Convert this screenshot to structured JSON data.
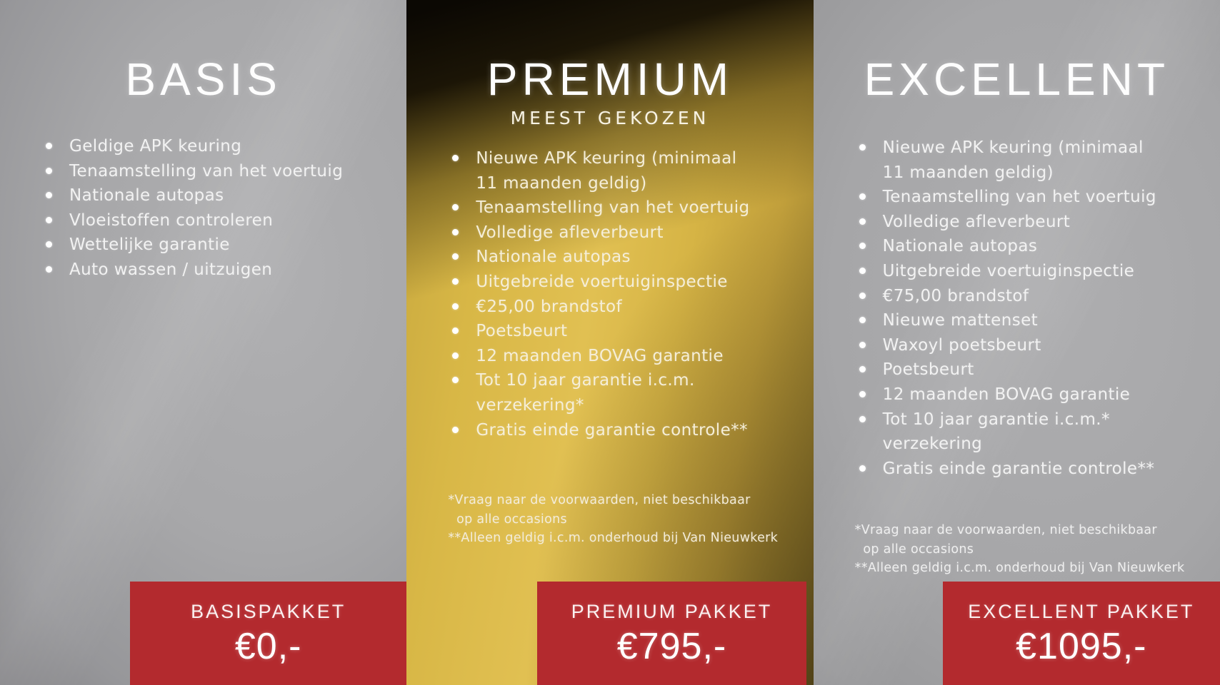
{
  "poster": {
    "columns": [
      {
        "id": "basis",
        "title": "BASIS",
        "subtitle": "",
        "features": [
          "Geldige APK keuring",
          "Tenaamstelling van het voertuig",
          "Nationale autopas",
          "Vloeistoffen controleren",
          "Wettelijke garantie",
          "Auto wassen / uitzuigen"
        ],
        "footnotes": [],
        "price_label": "BASISPAKKET",
        "price": "€0,-"
      },
      {
        "id": "premium",
        "title": "PREMIUM",
        "subtitle": "MEEST GEKOZEN",
        "features": [
          "Nieuwe APK keuring (minimaal\n11 maanden geldig)",
          "Tenaamstelling van het voertuig",
          "Volledige afleverbeurt",
          "Nationale autopas",
          "Uitgebreide voertuiginspectie",
          "€25,00 brandstof",
          "Poetsbeurt",
          "12 maanden BOVAG garantie",
          "Tot 10 jaar garantie i.c.m.\nverzekering*",
          "Gratis einde garantie controle**"
        ],
        "footnotes": [
          "*Vraag naar de voorwaarden, niet beschikbaar\n  op alle occasions",
          "**Alleen geldig i.c.m. onderhoud bij Van Nieuwkerk"
        ],
        "price_label": "PREMIUM PAKKET",
        "price": "€795,-"
      },
      {
        "id": "excellent",
        "title": "EXCELLENT",
        "subtitle": "",
        "features": [
          "Nieuwe APK keuring (minimaal\n11 maanden geldig)",
          "Tenaamstelling van het voertuig",
          "Volledige afleverbeurt",
          "Nationale autopas",
          "Uitgebreide voertuiginspectie",
          "€75,00 brandstof",
          "Nieuwe mattenset",
          "Waxoyl poetsbeurt",
          "Poetsbeurt",
          "12 maanden BOVAG garantie",
          "Tot 10 jaar garantie i.c.m.*\nverzekering",
          "Gratis einde garantie controle**"
        ],
        "footnotes": [
          "*Vraag naar de voorwaarden, niet beschikbaar\n  op alle occasions",
          "**Alleen geldig i.c.m. onderhoud bij Van Nieuwkerk"
        ],
        "price_label": "EXCELLENT PAKKET",
        "price": "€1095,-"
      }
    ],
    "colors": {
      "accent_red": "#b32a2e",
      "gold": "#d9b847",
      "silver": "#a5a5a7",
      "dark_corner": "#1a1408",
      "text_light": "#f5f2ea"
    }
  }
}
